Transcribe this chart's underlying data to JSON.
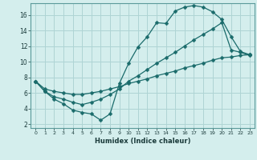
{
  "xlabel": "Humidex (Indice chaleur)",
  "bg_color": "#d4eeed",
  "grid_color": "#aed4d4",
  "line_color": "#1a6b6b",
  "xlim": [
    -0.5,
    23.5
  ],
  "ylim": [
    1.5,
    17.5
  ],
  "xticks": [
    0,
    1,
    2,
    3,
    4,
    5,
    6,
    7,
    8,
    9,
    10,
    11,
    12,
    13,
    14,
    15,
    16,
    17,
    18,
    19,
    20,
    21,
    22,
    23
  ],
  "yticks": [
    2,
    4,
    6,
    8,
    10,
    12,
    14,
    16
  ],
  "line1_x": [
    0,
    1,
    2,
    3,
    4,
    5,
    6,
    7,
    8,
    9,
    10,
    11,
    12,
    13,
    14,
    15,
    16,
    17,
    18,
    19,
    20,
    21,
    22,
    23
  ],
  "line1_y": [
    7.5,
    6.2,
    5.2,
    4.6,
    3.8,
    3.5,
    3.3,
    2.5,
    3.3,
    7.2,
    9.8,
    11.9,
    13.2,
    15.0,
    14.9,
    16.5,
    17.0,
    17.2,
    17.0,
    16.4,
    15.4,
    13.2,
    11.3,
    10.9
  ],
  "line2_x": [
    0,
    1,
    2,
    3,
    4,
    5,
    6,
    7,
    8,
    9,
    10,
    11,
    12,
    13,
    14,
    15,
    16,
    17,
    18,
    19,
    20,
    21,
    22,
    23
  ],
  "line2_y": [
    7.5,
    6.2,
    5.5,
    5.2,
    4.8,
    4.5,
    4.8,
    5.2,
    5.8,
    6.5,
    7.5,
    8.2,
    9.0,
    9.8,
    10.5,
    11.2,
    12.0,
    12.8,
    13.5,
    14.2,
    15.0,
    11.5,
    11.2,
    10.8
  ],
  "line3_x": [
    0,
    1,
    2,
    3,
    4,
    5,
    6,
    7,
    8,
    9,
    10,
    11,
    12,
    13,
    14,
    15,
    16,
    17,
    18,
    19,
    20,
    21,
    22,
    23
  ],
  "line3_y": [
    7.5,
    6.5,
    6.2,
    6.0,
    5.8,
    5.8,
    6.0,
    6.2,
    6.5,
    6.8,
    7.2,
    7.5,
    7.8,
    8.2,
    8.5,
    8.8,
    9.2,
    9.5,
    9.8,
    10.2,
    10.5,
    10.6,
    10.8,
    10.9
  ]
}
